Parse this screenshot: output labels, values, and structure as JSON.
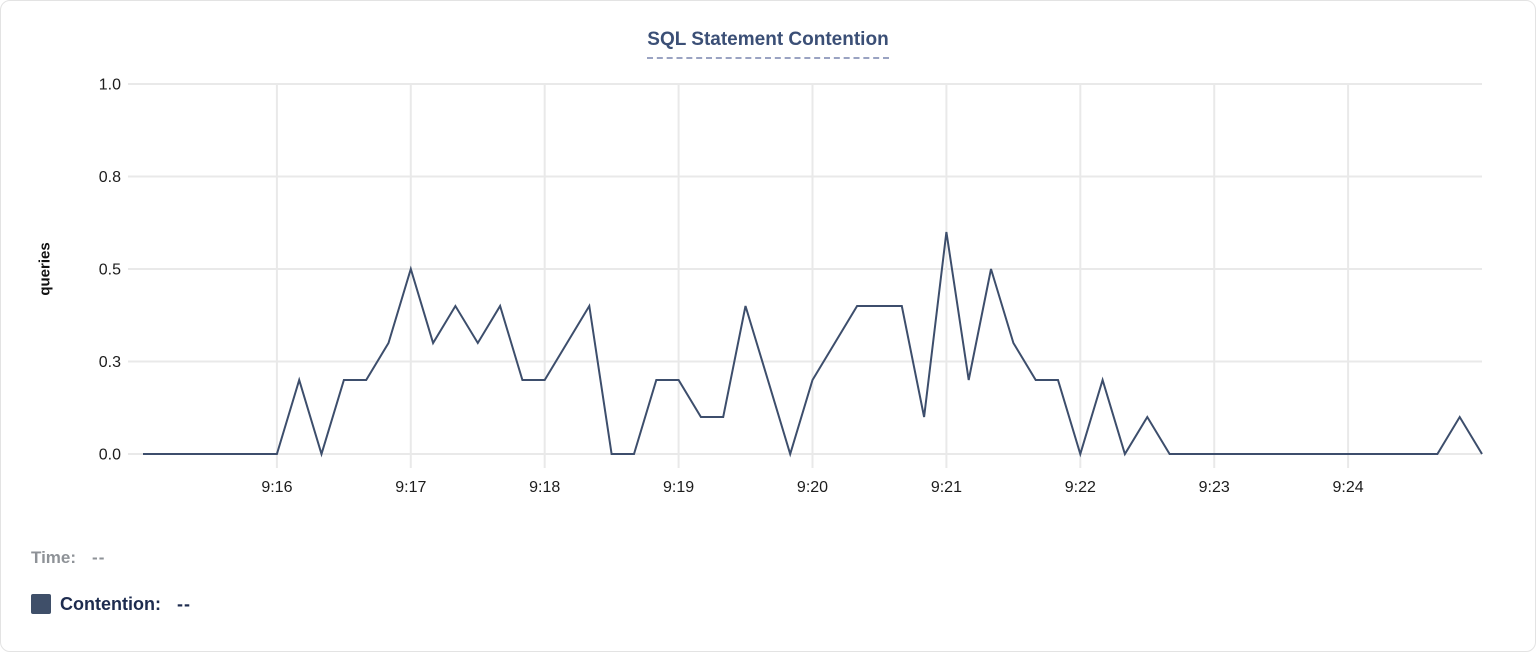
{
  "page": {
    "title": "SQL Statement Contention"
  },
  "chart_data": {
    "type": "line",
    "title": "SQL Statement Contention",
    "xlabel": "",
    "ylabel": "queries",
    "ylim": [
      0,
      1
    ],
    "grid": true,
    "legend_position": "bottom-left",
    "yticks": [
      {
        "value": 0.0,
        "label": "0.0"
      },
      {
        "value": 0.25,
        "label": "0.3"
      },
      {
        "value": 0.5,
        "label": "0.5"
      },
      {
        "value": 0.75,
        "label": "0.8"
      },
      {
        "value": 1.0,
        "label": "1.0"
      }
    ],
    "xticks": [
      {
        "label": "9:16",
        "index": 6
      },
      {
        "label": "9:17",
        "index": 12
      },
      {
        "label": "9:18",
        "index": 18
      },
      {
        "label": "9:19",
        "index": 24
      },
      {
        "label": "9:20",
        "index": 30
      },
      {
        "label": "9:21",
        "index": 36
      },
      {
        "label": "9:22",
        "index": 42
      },
      {
        "label": "9:23",
        "index": 48
      },
      {
        "label": "9:24",
        "index": 54
      }
    ],
    "x_axis": {
      "start": "9:15",
      "end": "9:25",
      "point_interval_seconds": 10
    },
    "series": [
      {
        "name": "Contention",
        "color": "#3d4e6c",
        "values": [
          0,
          0,
          0,
          0,
          0,
          0,
          0,
          0.2,
          0,
          0.2,
          0.2,
          0.3,
          0.5,
          0.3,
          0.4,
          0.3,
          0.4,
          0.2,
          0.2,
          0.3,
          0.4,
          0,
          0,
          0.2,
          0.2,
          0.1,
          0.1,
          0.4,
          0.2,
          0,
          0.2,
          0.3,
          0.4,
          0.4,
          0.4,
          0.1,
          0.6,
          0.2,
          0.5,
          0.3,
          0.2,
          0.2,
          0,
          0.2,
          0,
          0.1,
          0,
          0,
          0,
          0,
          0,
          0,
          0,
          0,
          0,
          0,
          0,
          0,
          0,
          0.1,
          0
        ]
      }
    ]
  },
  "legend": {
    "time_label": "Time:",
    "time_value": "--",
    "contention_label": "Contention:",
    "contention_value": "--"
  },
  "colors": {
    "line": "#3d4e6c",
    "swatch": "#3f4f69",
    "title": "#3b4f76",
    "title_underline": "#9aa3c2",
    "time_text": "#8e9297",
    "contention_text": "#1e2c4f",
    "grid": "#e9e9e9",
    "tick_text": "#1c1c1c",
    "card_border": "#e3e3e3"
  }
}
